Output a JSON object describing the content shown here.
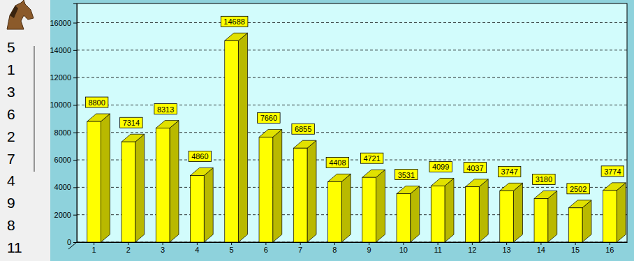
{
  "chart_data": {
    "type": "bar",
    "categories": [
      "1",
      "2",
      "3",
      "4",
      "5",
      "6",
      "7",
      "8",
      "9",
      "10",
      "11",
      "12",
      "13",
      "14",
      "15",
      "16"
    ],
    "values": [
      8800,
      7314,
      8313,
      4860,
      14688,
      7660,
      6855,
      4408,
      4721,
      3531,
      4099,
      4037,
      3747,
      3180,
      2502,
      3774
    ],
    "color": "#ffff00",
    "ylim": [
      0,
      17400
    ],
    "yticks": [
      0,
      2000,
      4000,
      6000,
      8000,
      10000,
      12000,
      14000,
      16000
    ],
    "grid": true,
    "data_labels": true
  },
  "sidebar": {
    "items": [
      5,
      1,
      3,
      6,
      2,
      7,
      4,
      9,
      8,
      11
    ]
  }
}
